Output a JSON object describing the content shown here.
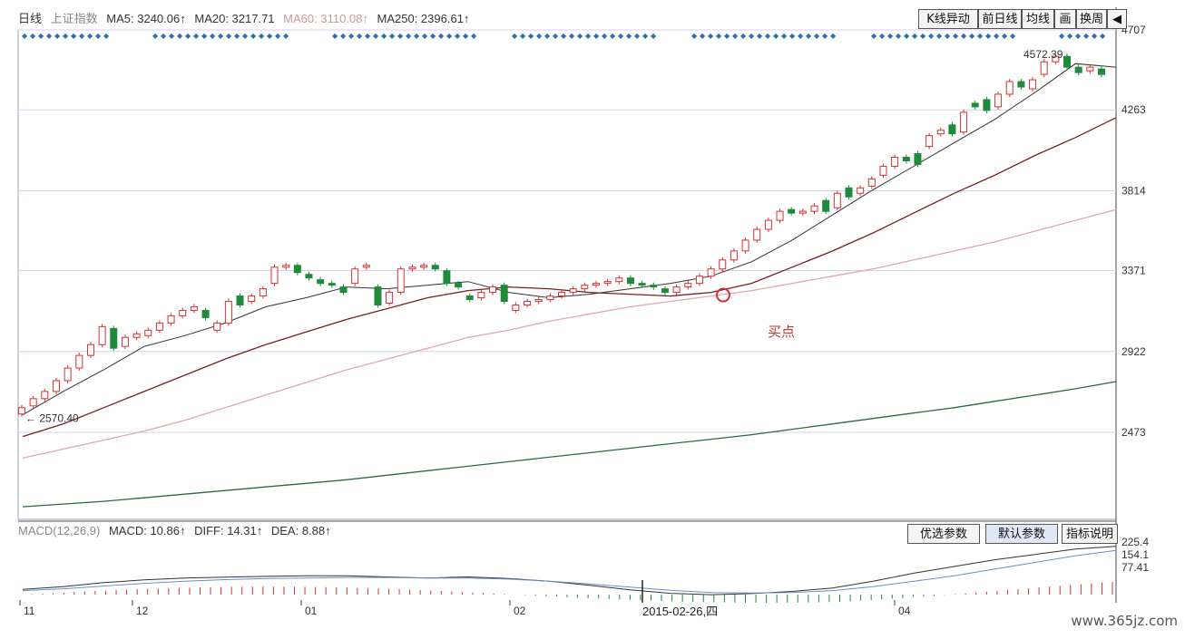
{
  "top_bar": {
    "period": "日线",
    "index_name": "上证指数",
    "ma5": "MA5: 3240.06↑",
    "ma20": "MA20: 3217.71",
    "ma60": "MA60: 3110.08↑",
    "ma250": "MA250: 2396.61↑"
  },
  "toolbar": {
    "buttons": [
      "K线异动",
      "前日线",
      "均线",
      "画",
      "换周"
    ],
    "back_arrow": "◀"
  },
  "macd_bar": {
    "title": "MACD(12,26,9)",
    "macd": "MACD: 10.86↑",
    "diff": "DIFF: 14.31↑",
    "dea": "DEA: 8.88↑",
    "buttons": [
      "优选参数",
      "默认参数",
      "指标说明"
    ]
  },
  "annotations": {
    "low_label": "← 2570.40",
    "high_label": "4572.39",
    "buy_point_label": "买点",
    "cursor_date": "2015-02-26,四"
  },
  "watermark": "www.365jz.com",
  "colors": {
    "up": "#d83030",
    "down": "#1f8a3a",
    "ma5": "#333333",
    "ma20": "#7a1f1f",
    "ma60": "#e0a8b0",
    "ma250": "#2b6a3f",
    "grid": "#cfd6e6",
    "accent": "#2a6fb0"
  },
  "chart_data": {
    "type": "candlestick",
    "title": "上证指数 日线",
    "price_axis_ticks": [
      4707,
      4263,
      3814,
      3371,
      2922,
      2473
    ],
    "ylim": [
      1990,
      4707
    ],
    "date_ticks": [
      "11",
      "12",
      "01",
      "02",
      "04"
    ],
    "series_lines": [
      {
        "name": "MA5",
        "values": [
          2570,
          2700,
          2820,
          2950,
          3010,
          3080,
          3170,
          3220,
          3280,
          3270,
          3290,
          3310,
          3250,
          3220,
          3240,
          3270,
          3300,
          3340,
          3420,
          3540,
          3680,
          3820,
          3950,
          4080,
          4210,
          4360,
          4520,
          4500
        ]
      },
      {
        "name": "MA20",
        "values": [
          2450,
          2520,
          2610,
          2700,
          2790,
          2880,
          2960,
          3030,
          3100,
          3160,
          3220,
          3260,
          3280,
          3270,
          3250,
          3240,
          3230,
          3250,
          3300,
          3390,
          3480,
          3580,
          3690,
          3800,
          3900,
          4010,
          4110,
          4220
        ]
      },
      {
        "name": "MA60",
        "values": [
          2330,
          2380,
          2430,
          2480,
          2540,
          2610,
          2680,
          2750,
          2820,
          2880,
          2940,
          3000,
          3040,
          3090,
          3130,
          3170,
          3200,
          3230,
          3260,
          3300,
          3340,
          3380,
          3430,
          3480,
          3530,
          3590,
          3650,
          3710
        ]
      },
      {
        "name": "MA250",
        "values": [
          2060,
          2075,
          2090,
          2110,
          2130,
          2150,
          2170,
          2190,
          2210,
          2235,
          2260,
          2285,
          2310,
          2335,
          2360,
          2385,
          2410,
          2435,
          2460,
          2490,
          2520,
          2550,
          2580,
          2610,
          2645,
          2680,
          2715,
          2755
        ]
      }
    ],
    "candles": [
      {
        "o": 2575,
        "c": 2610
      },
      {
        "o": 2620,
        "c": 2660
      },
      {
        "o": 2660,
        "c": 2700
      },
      {
        "o": 2700,
        "c": 2760
      },
      {
        "o": 2760,
        "c": 2830
      },
      {
        "o": 2830,
        "c": 2900
      },
      {
        "o": 2900,
        "c": 2960
      },
      {
        "o": 2960,
        "c": 3060
      },
      {
        "o": 3050,
        "c": 2940
      },
      {
        "o": 2950,
        "c": 3000
      },
      {
        "o": 3000,
        "c": 3020
      },
      {
        "o": 3010,
        "c": 3040
      },
      {
        "o": 3040,
        "c": 3080
      },
      {
        "o": 3080,
        "c": 3120
      },
      {
        "o": 3120,
        "c": 3150
      },
      {
        "o": 3150,
        "c": 3170
      },
      {
        "o": 3150,
        "c": 3110
      },
      {
        "o": 3040,
        "c": 3080
      },
      {
        "o": 3080,
        "c": 3200
      },
      {
        "o": 3230,
        "c": 3180
      },
      {
        "o": 3200,
        "c": 3230
      },
      {
        "o": 3230,
        "c": 3270
      },
      {
        "o": 3300,
        "c": 3390
      },
      {
        "o": 3390,
        "c": 3400
      },
      {
        "o": 3400,
        "c": 3360
      },
      {
        "o": 3350,
        "c": 3330
      },
      {
        "o": 3320,
        "c": 3300
      },
      {
        "o": 3300,
        "c": 3290
      },
      {
        "o": 3280,
        "c": 3250
      },
      {
        "o": 3300,
        "c": 3380
      },
      {
        "o": 3390,
        "c": 3400
      },
      {
        "o": 3280,
        "c": 3180
      },
      {
        "o": 3190,
        "c": 3250
      },
      {
        "o": 3250,
        "c": 3380
      },
      {
        "o": 3380,
        "c": 3390
      },
      {
        "o": 3390,
        "c": 3400
      },
      {
        "o": 3400,
        "c": 3380
      },
      {
        "o": 3370,
        "c": 3300
      },
      {
        "o": 3300,
        "c": 3280
      },
      {
        "o": 3230,
        "c": 3210
      },
      {
        "o": 3220,
        "c": 3250
      },
      {
        "o": 3250,
        "c": 3280
      },
      {
        "o": 3290,
        "c": 3200
      },
      {
        "o": 3150,
        "c": 3180
      },
      {
        "o": 3180,
        "c": 3200
      },
      {
        "o": 3200,
        "c": 3210
      },
      {
        "o": 3210,
        "c": 3230
      },
      {
        "o": 3230,
        "c": 3250
      },
      {
        "o": 3250,
        "c": 3270
      },
      {
        "o": 3270,
        "c": 3290
      },
      {
        "o": 3290,
        "c": 3300
      },
      {
        "o": 3300,
        "c": 3310
      },
      {
        "o": 3310,
        "c": 3330
      },
      {
        "o": 3330,
        "c": 3300
      },
      {
        "o": 3300,
        "c": 3290
      },
      {
        "o": 3290,
        "c": 3280
      },
      {
        "o": 3270,
        "c": 3250
      },
      {
        "o": 3250,
        "c": 3280
      },
      {
        "o": 3280,
        "c": 3300
      },
      {
        "o": 3300,
        "c": 3340
      },
      {
        "o": 3340,
        "c": 3380
      },
      {
        "o": 3380,
        "c": 3430
      },
      {
        "o": 3430,
        "c": 3480
      },
      {
        "o": 3480,
        "c": 3540
      },
      {
        "o": 3540,
        "c": 3600
      },
      {
        "o": 3600,
        "c": 3650
      },
      {
        "o": 3650,
        "c": 3700
      },
      {
        "o": 3710,
        "c": 3690
      },
      {
        "o": 3690,
        "c": 3700
      },
      {
        "o": 3700,
        "c": 3730
      },
      {
        "o": 3760,
        "c": 3700
      },
      {
        "o": 3720,
        "c": 3800
      },
      {
        "o": 3830,
        "c": 3780
      },
      {
        "o": 3800,
        "c": 3830
      },
      {
        "o": 3840,
        "c": 3880
      },
      {
        "o": 3900,
        "c": 3950
      },
      {
        "o": 3950,
        "c": 4000
      },
      {
        "o": 4000,
        "c": 3980
      },
      {
        "o": 4020,
        "c": 3960
      },
      {
        "o": 4060,
        "c": 4120
      },
      {
        "o": 4130,
        "c": 4150
      },
      {
        "o": 4180,
        "c": 4130
      },
      {
        "o": 4140,
        "c": 4250
      },
      {
        "o": 4300,
        "c": 4280
      },
      {
        "o": 4320,
        "c": 4260
      },
      {
        "o": 4280,
        "c": 4350
      },
      {
        "o": 4350,
        "c": 4420
      },
      {
        "o": 4420,
        "c": 4390
      },
      {
        "o": 4380,
        "c": 4430
      },
      {
        "o": 4460,
        "c": 4530
      },
      {
        "o": 4530,
        "c": 4560
      },
      {
        "o": 4560,
        "c": 4500
      },
      {
        "o": 4500,
        "c": 4470
      },
      {
        "o": 4480,
        "c": 4500
      },
      {
        "o": 4490,
        "c": 4460
      }
    ],
    "macd": {
      "diff": [
        20,
        30,
        45,
        55,
        62,
        65,
        68,
        70,
        70,
        66,
        62,
        66,
        60,
        50,
        35,
        18,
        5,
        0,
        4,
        12,
        25,
        50,
        80,
        105,
        130,
        150,
        170,
        180
      ],
      "dea": [
        15,
        22,
        32,
        42,
        50,
        56,
        60,
        62,
        64,
        64,
        62,
        62,
        58,
        50,
        40,
        28,
        16,
        8,
        6,
        8,
        15,
        30,
        50,
        70,
        95,
        120,
        145,
        165
      ],
      "ylim": [
        -20,
        240
      ]
    },
    "macd_axis_ticks": [
      "225.4",
      "154.1",
      "77.41"
    ]
  }
}
